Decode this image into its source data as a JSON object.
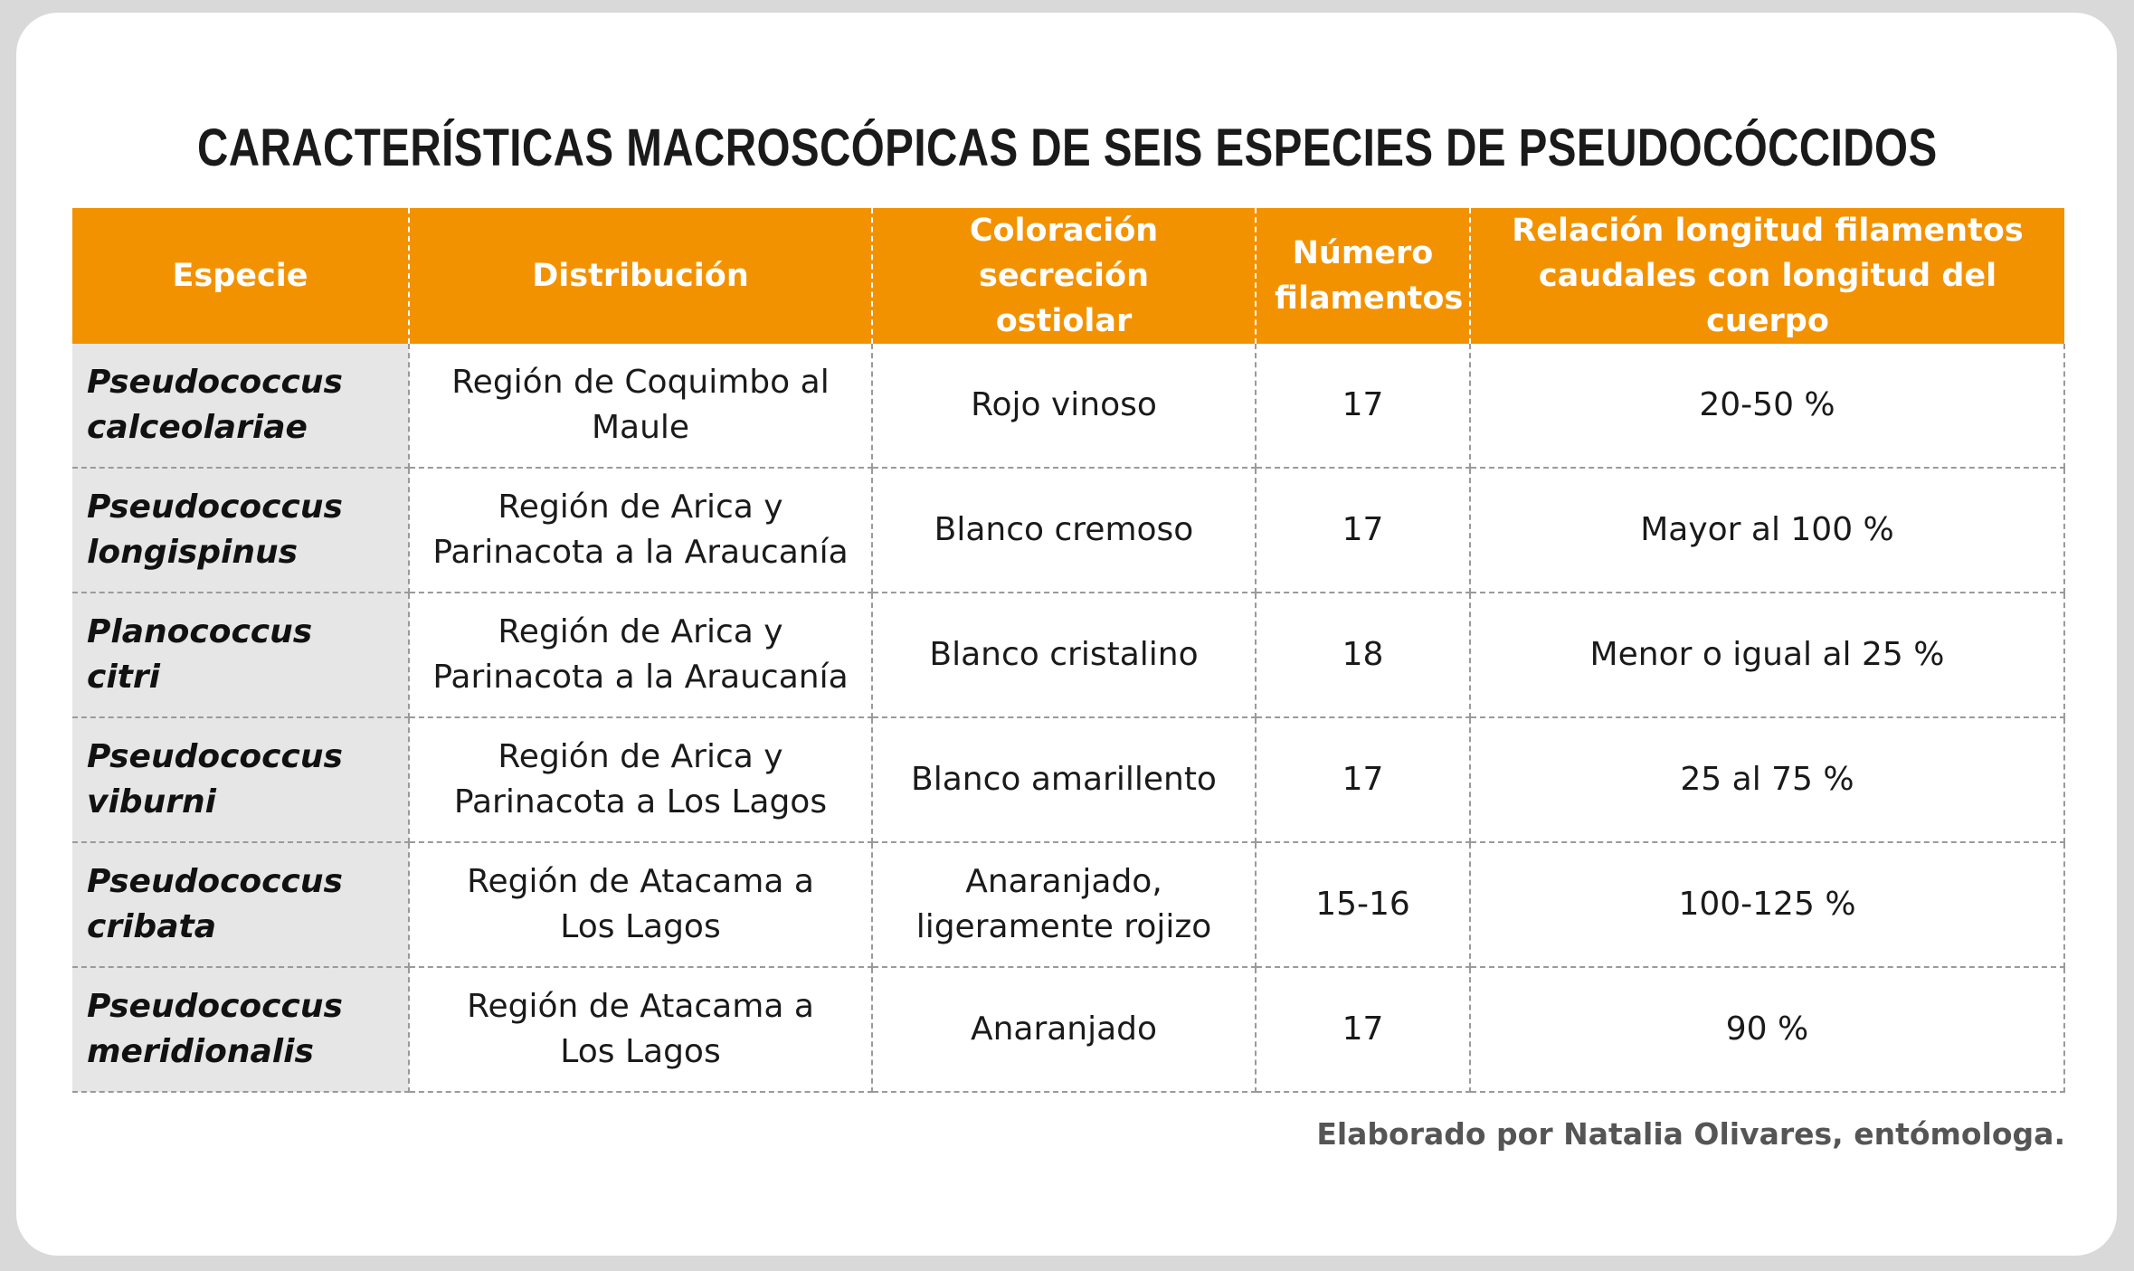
{
  "title": "CARACTERÍSTICAS MACROSCÓPICAS DE SEIS ESPECIES DE PSEUDOCÓCCIDOS",
  "table": {
    "headers": [
      "Especie",
      "Distribución",
      "Coloración secreción ostiolar",
      "Número filamentos",
      "Relación longitud filamentos caudales con longitud del cuerpo"
    ],
    "rows": [
      {
        "species": "Pseudococcus calceolariae",
        "distribution": "Región de Coquimbo al Maule",
        "color": "Rojo vinoso",
        "filaments": "17",
        "ratio": "20-50 %"
      },
      {
        "species": "Pseudococcus longispinus",
        "distribution": "Región de Arica y Parinacota a la Araucanía",
        "color": "Blanco cremoso",
        "filaments": "17",
        "ratio": "Mayor al 100 %"
      },
      {
        "species": "Planococcus citri",
        "distribution": "Región de Arica y Parinacota a la Araucanía",
        "color": "Blanco cristalino",
        "filaments": "18",
        "ratio": "Menor o igual al 25 %"
      },
      {
        "species": "Pseudococcus viburni",
        "distribution": "Región de Arica y Parinacota a Los Lagos",
        "color": "Blanco amarillento",
        "filaments": "17",
        "ratio": "25 al 75 %"
      },
      {
        "species": "Pseudococcus cribata",
        "distribution": "Región de Atacama a Los Lagos",
        "color": "Anaranjado, ligeramente rojizo",
        "filaments": "15-16",
        "ratio": "100-125 %"
      },
      {
        "species": "Pseudococcus meridionalis",
        "distribution": "Región de Atacama a Los Lagos",
        "color": "Anaranjado",
        "filaments": "17",
        "ratio": "90 %"
      }
    ]
  },
  "credit": "Elaborado por Natalia Olivares, entómologa.",
  "colors": {
    "header_bg": "#f39200",
    "species_col_bg": "#e6e6e6",
    "page_bg": "#d9d9d9"
  }
}
